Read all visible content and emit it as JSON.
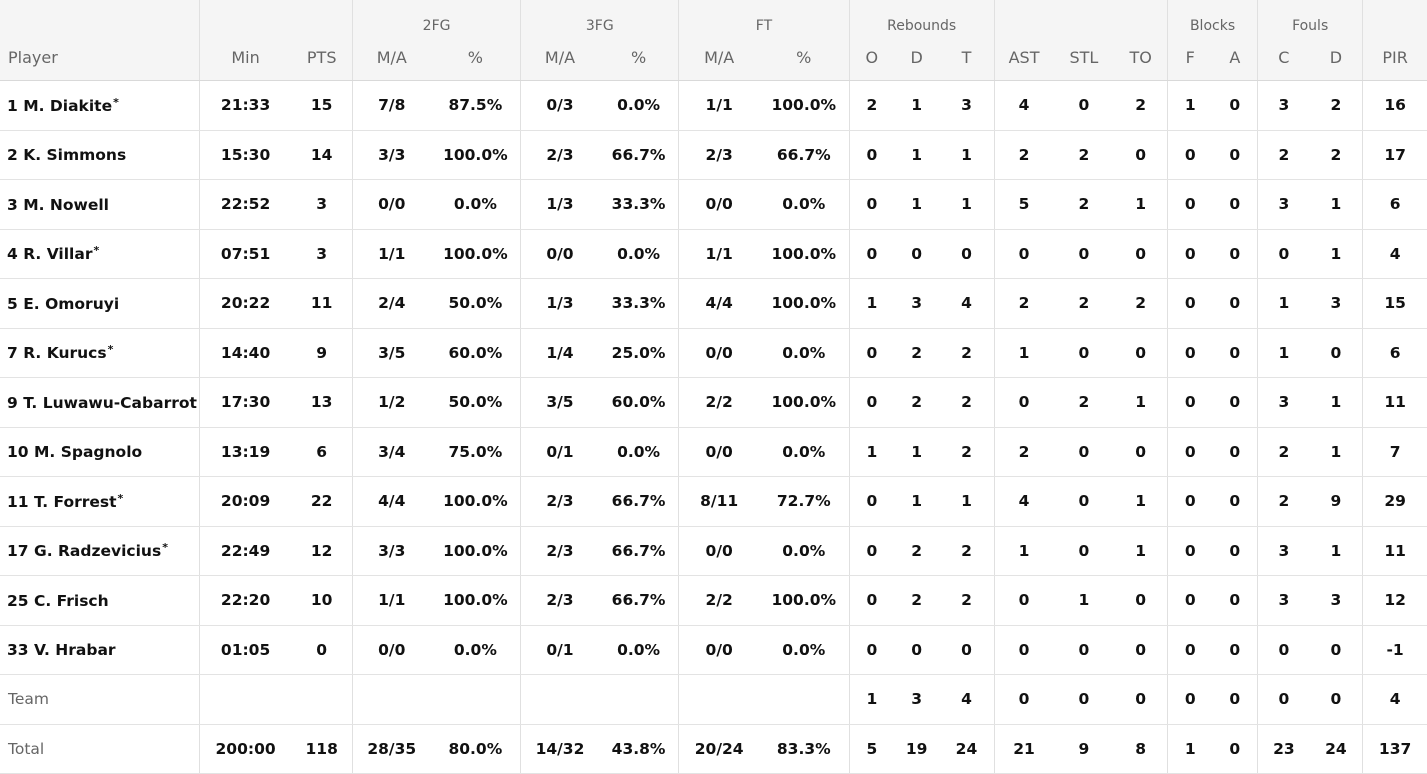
{
  "groups": {
    "fg2": "2FG",
    "fg3": "3FG",
    "ft": "FT",
    "rebounds": "Rebounds",
    "blocks": "Blocks",
    "fouls": "Fouls"
  },
  "columns": {
    "player": "Player",
    "min": "Min",
    "pts": "PTS",
    "fg2_ma": "M/A",
    "fg2_pct": "%",
    "fg3_ma": "M/A",
    "fg3_pct": "%",
    "ft_ma": "M/A",
    "ft_pct": "%",
    "reb_o": "O",
    "reb_d": "D",
    "reb_t": "T",
    "ast": "AST",
    "stl": "STL",
    "to": "TO",
    "blk_f": "F",
    "blk_a": "A",
    "foul_c": "C",
    "foul_d": "D",
    "pir": "PIR"
  },
  "rows": [
    {
      "number": "1",
      "name": "M. Diakite",
      "starter": "*",
      "min": "21:33",
      "pts": "15",
      "fg2_ma": "7/8",
      "fg2_pct": "87.5%",
      "fg3_ma": "0/3",
      "fg3_pct": "0.0%",
      "ft_ma": "1/1",
      "ft_pct": "100.0%",
      "reb_o": "2",
      "reb_d": "1",
      "reb_t": "3",
      "ast": "4",
      "stl": "0",
      "to": "2",
      "blk_f": "1",
      "blk_a": "0",
      "foul_c": "3",
      "foul_d": "2",
      "pir": "16"
    },
    {
      "number": "2",
      "name": "K. Simmons",
      "starter": "",
      "min": "15:30",
      "pts": "14",
      "fg2_ma": "3/3",
      "fg2_pct": "100.0%",
      "fg3_ma": "2/3",
      "fg3_pct": "66.7%",
      "ft_ma": "2/3",
      "ft_pct": "66.7%",
      "reb_o": "0",
      "reb_d": "1",
      "reb_t": "1",
      "ast": "2",
      "stl": "2",
      "to": "0",
      "blk_f": "0",
      "blk_a": "0",
      "foul_c": "2",
      "foul_d": "2",
      "pir": "17"
    },
    {
      "number": "3",
      "name": "M. Nowell",
      "starter": "",
      "min": "22:52",
      "pts": "3",
      "fg2_ma": "0/0",
      "fg2_pct": "0.0%",
      "fg3_ma": "1/3",
      "fg3_pct": "33.3%",
      "ft_ma": "0/0",
      "ft_pct": "0.0%",
      "reb_o": "0",
      "reb_d": "1",
      "reb_t": "1",
      "ast": "5",
      "stl": "2",
      "to": "1",
      "blk_f": "0",
      "blk_a": "0",
      "foul_c": "3",
      "foul_d": "1",
      "pir": "6"
    },
    {
      "number": "4",
      "name": "R. Villar",
      "starter": "*",
      "min": "07:51",
      "pts": "3",
      "fg2_ma": "1/1",
      "fg2_pct": "100.0%",
      "fg3_ma": "0/0",
      "fg3_pct": "0.0%",
      "ft_ma": "1/1",
      "ft_pct": "100.0%",
      "reb_o": "0",
      "reb_d": "0",
      "reb_t": "0",
      "ast": "0",
      "stl": "0",
      "to": "0",
      "blk_f": "0",
      "blk_a": "0",
      "foul_c": "0",
      "foul_d": "1",
      "pir": "4"
    },
    {
      "number": "5",
      "name": "E. Omoruyi",
      "starter": "",
      "min": "20:22",
      "pts": "11",
      "fg2_ma": "2/4",
      "fg2_pct": "50.0%",
      "fg3_ma": "1/3",
      "fg3_pct": "33.3%",
      "ft_ma": "4/4",
      "ft_pct": "100.0%",
      "reb_o": "1",
      "reb_d": "3",
      "reb_t": "4",
      "ast": "2",
      "stl": "2",
      "to": "2",
      "blk_f": "0",
      "blk_a": "0",
      "foul_c": "1",
      "foul_d": "3",
      "pir": "15"
    },
    {
      "number": "7",
      "name": "R. Kurucs",
      "starter": "*",
      "min": "14:40",
      "pts": "9",
      "fg2_ma": "3/5",
      "fg2_pct": "60.0%",
      "fg3_ma": "1/4",
      "fg3_pct": "25.0%",
      "ft_ma": "0/0",
      "ft_pct": "0.0%",
      "reb_o": "0",
      "reb_d": "2",
      "reb_t": "2",
      "ast": "1",
      "stl": "0",
      "to": "0",
      "blk_f": "0",
      "blk_a": "0",
      "foul_c": "1",
      "foul_d": "0",
      "pir": "6"
    },
    {
      "number": "9",
      "name": "T. Luwawu-Cabarrot",
      "starter": "",
      "min": "17:30",
      "pts": "13",
      "fg2_ma": "1/2",
      "fg2_pct": "50.0%",
      "fg3_ma": "3/5",
      "fg3_pct": "60.0%",
      "ft_ma": "2/2",
      "ft_pct": "100.0%",
      "reb_o": "0",
      "reb_d": "2",
      "reb_t": "2",
      "ast": "0",
      "stl": "2",
      "to": "1",
      "blk_f": "0",
      "blk_a": "0",
      "foul_c": "3",
      "foul_d": "1",
      "pir": "11"
    },
    {
      "number": "10",
      "name": "M. Spagnolo",
      "starter": "",
      "min": "13:19",
      "pts": "6",
      "fg2_ma": "3/4",
      "fg2_pct": "75.0%",
      "fg3_ma": "0/1",
      "fg3_pct": "0.0%",
      "ft_ma": "0/0",
      "ft_pct": "0.0%",
      "reb_o": "1",
      "reb_d": "1",
      "reb_t": "2",
      "ast": "2",
      "stl": "0",
      "to": "0",
      "blk_f": "0",
      "blk_a": "0",
      "foul_c": "2",
      "foul_d": "1",
      "pir": "7"
    },
    {
      "number": "11",
      "name": "T. Forrest",
      "starter": "*",
      "min": "20:09",
      "pts": "22",
      "fg2_ma": "4/4",
      "fg2_pct": "100.0%",
      "fg3_ma": "2/3",
      "fg3_pct": "66.7%",
      "ft_ma": "8/11",
      "ft_pct": "72.7%",
      "reb_o": "0",
      "reb_d": "1",
      "reb_t": "1",
      "ast": "4",
      "stl": "0",
      "to": "1",
      "blk_f": "0",
      "blk_a": "0",
      "foul_c": "2",
      "foul_d": "9",
      "pir": "29"
    },
    {
      "number": "17",
      "name": "G. Radzevicius",
      "starter": "*",
      "min": "22:49",
      "pts": "12",
      "fg2_ma": "3/3",
      "fg2_pct": "100.0%",
      "fg3_ma": "2/3",
      "fg3_pct": "66.7%",
      "ft_ma": "0/0",
      "ft_pct": "0.0%",
      "reb_o": "0",
      "reb_d": "2",
      "reb_t": "2",
      "ast": "1",
      "stl": "0",
      "to": "1",
      "blk_f": "0",
      "blk_a": "0",
      "foul_c": "3",
      "foul_d": "1",
      "pir": "11"
    },
    {
      "number": "25",
      "name": "C. Frisch",
      "starter": "",
      "min": "22:20",
      "pts": "10",
      "fg2_ma": "1/1",
      "fg2_pct": "100.0%",
      "fg3_ma": "2/3",
      "fg3_pct": "66.7%",
      "ft_ma": "2/2",
      "ft_pct": "100.0%",
      "reb_o": "0",
      "reb_d": "2",
      "reb_t": "2",
      "ast": "0",
      "stl": "1",
      "to": "0",
      "blk_f": "0",
      "blk_a": "0",
      "foul_c": "3",
      "foul_d": "3",
      "pir": "12"
    },
    {
      "number": "33",
      "name": "V. Hrabar",
      "starter": "",
      "min": "01:05",
      "pts": "0",
      "fg2_ma": "0/0",
      "fg2_pct": "0.0%",
      "fg3_ma": "0/1",
      "fg3_pct": "0.0%",
      "ft_ma": "0/0",
      "ft_pct": "0.0%",
      "reb_o": "0",
      "reb_d": "0",
      "reb_t": "0",
      "ast": "0",
      "stl": "0",
      "to": "0",
      "blk_f": "0",
      "blk_a": "0",
      "foul_c": "0",
      "foul_d": "0",
      "pir": "-1"
    }
  ],
  "team": {
    "label": "Team",
    "min": "",
    "pts": "",
    "fg2_ma": "",
    "fg2_pct": "",
    "fg3_ma": "",
    "fg3_pct": "",
    "ft_ma": "",
    "ft_pct": "",
    "reb_o": "1",
    "reb_d": "3",
    "reb_t": "4",
    "ast": "0",
    "stl": "0",
    "to": "0",
    "blk_f": "0",
    "blk_a": "0",
    "foul_c": "0",
    "foul_d": "0",
    "pir": "4"
  },
  "total": {
    "label": "Total",
    "min": "200:00",
    "pts": "118",
    "fg2_ma": "28/35",
    "fg2_pct": "80.0%",
    "fg3_ma": "14/32",
    "fg3_pct": "43.8%",
    "ft_ma": "20/24",
    "ft_pct": "83.3%",
    "reb_o": "5",
    "reb_d": "19",
    "reb_t": "24",
    "ast": "21",
    "stl": "9",
    "to": "8",
    "blk_f": "1",
    "blk_a": "0",
    "foul_c": "23",
    "foul_d": "24",
    "pir": "137"
  }
}
